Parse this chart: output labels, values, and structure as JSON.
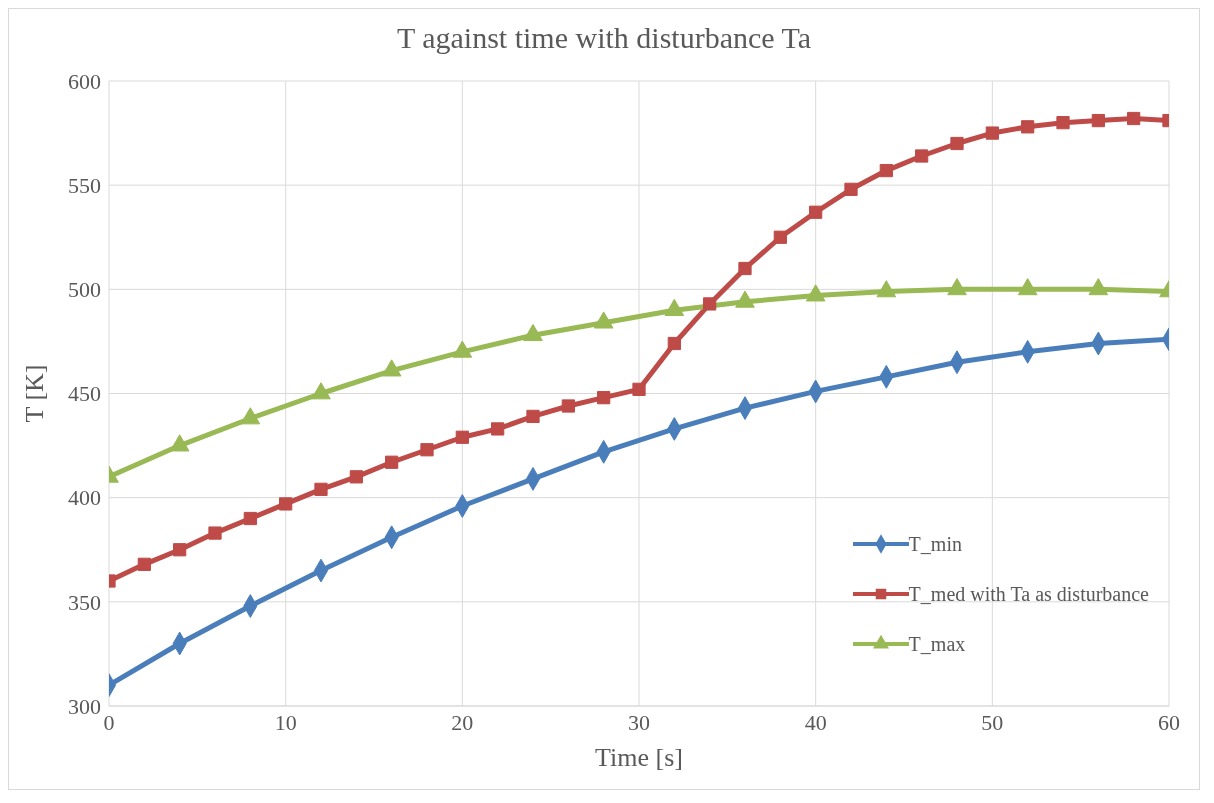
{
  "chart_data": {
    "type": "line",
    "title": "T against time with disturbance Ta",
    "xlabel": "Time [s]",
    "ylabel": "T [K]",
    "xlim": [
      0,
      60
    ],
    "xticks": [
      0,
      10,
      20,
      30,
      40,
      50,
      60
    ],
    "ylim": [
      300,
      600
    ],
    "yticks": [
      300,
      350,
      400,
      450,
      500,
      550,
      600
    ],
    "grid": true,
    "legend": "bottom right",
    "line_style": "solid",
    "series": [
      {
        "name": "T_min",
        "color": "#4a7ebb",
        "marker": "diamond",
        "x": [
          0,
          4,
          8,
          12,
          16,
          20,
          24,
          28,
          32,
          36,
          40,
          44,
          48,
          52,
          56,
          60
        ],
        "values": [
          310,
          330,
          348,
          365,
          381,
          396,
          409,
          422,
          433,
          443,
          451,
          458,
          465,
          470,
          474,
          476
        ]
      },
      {
        "name": "T_med with Ta as disturbance",
        "color": "#be4b48",
        "marker": "square",
        "x": [
          0,
          2,
          4,
          6,
          8,
          10,
          12,
          14,
          16,
          18,
          20,
          22,
          24,
          26,
          28,
          30,
          32,
          34,
          36,
          38,
          40,
          42,
          44,
          46,
          48,
          50,
          52,
          54,
          56,
          58,
          60
        ],
        "values": [
          360,
          368,
          375,
          383,
          390,
          397,
          404,
          410,
          417,
          423,
          429,
          433,
          439,
          444,
          448,
          452,
          474,
          493,
          510,
          525,
          537,
          548,
          557,
          564,
          570,
          575,
          578,
          580,
          581,
          582,
          581
        ]
      },
      {
        "name": "T_max",
        "color": "#98b954",
        "marker": "triangle",
        "x": [
          0,
          4,
          8,
          12,
          16,
          20,
          24,
          28,
          32,
          36,
          40,
          44,
          48,
          52,
          56,
          60
        ],
        "values": [
          410,
          425,
          438,
          450,
          461,
          470,
          478,
          484,
          490,
          494,
          497,
          499,
          500,
          500,
          500,
          499
        ]
      }
    ]
  }
}
